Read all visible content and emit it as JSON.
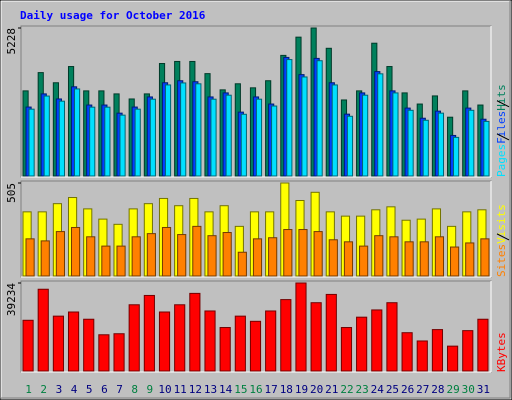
{
  "title": "Daily usage for October 2016",
  "chart_data": [
    {
      "type": "bar",
      "categories": [
        "1",
        "2",
        "3",
        "4",
        "5",
        "6",
        "7",
        "8",
        "9",
        "10",
        "11",
        "12",
        "13",
        "14",
        "15",
        "16",
        "17",
        "18",
        "19",
        "20",
        "21",
        "22",
        "23",
        "24",
        "25",
        "26",
        "27",
        "28",
        "29",
        "30",
        "31"
      ],
      "category_colors": [
        "#008040",
        "#008040",
        "#000080",
        "#000080",
        "#000080",
        "#000080",
        "#000080",
        "#008040",
        "#008040",
        "#000080",
        "#000080",
        "#000080",
        "#000080",
        "#000080",
        "#008040",
        "#008040",
        "#000080",
        "#000080",
        "#000080",
        "#000080",
        "#000080",
        "#008040",
        "#008040",
        "#000080",
        "#000080",
        "#000080",
        "#000080",
        "#000080",
        "#008040",
        "#008040",
        "#000080"
      ],
      "ylim": [
        0,
        5228
      ],
      "yticks": [
        5228
      ],
      "series": [
        {
          "name": "Hits",
          "color": "#00805c",
          "values": [
            3022,
            3663,
            3307,
            3876,
            3022,
            3022,
            2916,
            2738,
            2916,
            3982,
            4054,
            4054,
            3627,
            3058,
            3271,
            3129,
            3378,
            4267,
            4907,
            5228,
            4516,
            2703,
            3022,
            4694,
            3876,
            2951,
            2560,
            2845,
            2098,
            3022,
            2525
          ]
        },
        {
          "name": "Files",
          "color": "#0040ff",
          "values": [
            2454,
            2916,
            2738,
            3165,
            2525,
            2525,
            2240,
            2454,
            2809,
            3307,
            3378,
            3343,
            2809,
            2951,
            2276,
            2809,
            2560,
            4196,
            3592,
            4161,
            3307,
            2205,
            2951,
            3698,
            3022,
            2418,
            2062,
            2311,
            1458,
            2418,
            2027
          ]
        },
        {
          "name": "Pages",
          "color": "#00e0ff",
          "values": [
            2380,
            2840,
            2660,
            3090,
            2450,
            2450,
            2170,
            2380,
            2730,
            3230,
            3300,
            3270,
            2730,
            2870,
            2200,
            2730,
            2490,
            4120,
            3510,
            4080,
            3230,
            2130,
            2870,
            3620,
            2950,
            2340,
            1990,
            2240,
            1390,
            2340,
            1950
          ]
        }
      ]
    },
    {
      "type": "bar",
      "ylim": [
        0,
        505
      ],
      "yticks": [
        505
      ],
      "series": [
        {
          "name": "Visits",
          "color": "#ffff00",
          "values": [
            350,
            350,
            394,
            427,
            366,
            311,
            283,
            366,
            394,
            422,
            383,
            422,
            350,
            383,
            272,
            350,
            350,
            505,
            411,
            455,
            350,
            327,
            327,
            361,
            377,
            305,
            311,
            366,
            272,
            350,
            361
          ]
        },
        {
          "name": "Sites",
          "color": "#ff8000",
          "values": [
            205,
            194,
            244,
            266,
            216,
            166,
            166,
            216,
            233,
            266,
            228,
            272,
            222,
            239,
            133,
            205,
            211,
            255,
            255,
            244,
            200,
            189,
            166,
            222,
            216,
            189,
            189,
            216,
            161,
            183,
            205
          ]
        }
      ]
    },
    {
      "type": "bar",
      "ylim": [
        0,
        39234
      ],
      "yticks": [
        39234
      ],
      "series": [
        {
          "name": "KBytes",
          "color": "#ff0000",
          "values": [
            22800,
            36480,
            24624,
            26448,
            23256,
            16416,
            16872,
            29640,
            33744,
            26448,
            29640,
            34656,
            26904,
            19608,
            24624,
            22344,
            26904,
            31920,
            39234,
            30552,
            34200,
            19608,
            24168,
            27360,
            30552,
            17328,
            13680,
            18696,
            11400,
            18240,
            23256
          ]
        }
      ]
    }
  ]
}
